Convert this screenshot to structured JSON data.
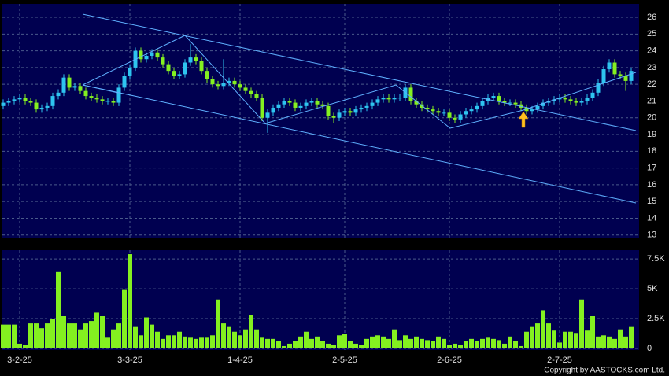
{
  "chart_data": [
    {
      "type": "candlestick",
      "up_color": "#2ec4f0",
      "down_color": "#84f020",
      "grid": true,
      "ylim": [
        12.8,
        26.8
      ],
      "yticks": [
        13,
        14,
        15,
        16,
        17,
        18,
        19,
        20,
        21,
        22,
        23,
        24,
        25,
        26
      ],
      "categories": [
        null,
        null,
        null,
        "3-2-25",
        null,
        null,
        null,
        null,
        null,
        null,
        null,
        null,
        null,
        null,
        null,
        null,
        null,
        null,
        null,
        null,
        null,
        null,
        null,
        "3-3-25",
        null,
        null,
        null,
        null,
        null,
        null,
        null,
        null,
        null,
        null,
        null,
        null,
        null,
        null,
        null,
        null,
        null,
        null,
        null,
        "1-4-25",
        null,
        null,
        null,
        null,
        null,
        null,
        null,
        null,
        null,
        null,
        null,
        null,
        null,
        null,
        null,
        null,
        null,
        null,
        "2-5-25",
        null,
        null,
        null,
        null,
        null,
        null,
        null,
        null,
        null,
        null,
        null,
        null,
        null,
        null,
        null,
        null,
        null,
        null,
        "2-6-25",
        null,
        null,
        null,
        null,
        null,
        null,
        null,
        null,
        null,
        null,
        null,
        null,
        null,
        null,
        null,
        null,
        null,
        null,
        null,
        "2-7-25",
        null,
        null,
        null,
        null,
        null,
        null,
        null,
        null,
        null,
        null,
        null,
        null,
        null
      ],
      "open": [
        20.7,
        20.9,
        21.0,
        21.1,
        21.2,
        21.0,
        20.9,
        20.5,
        20.6,
        20.7,
        21.3,
        21.5,
        22.4,
        21.8,
        21.9,
        21.6,
        21.3,
        21.2,
        21.1,
        21.0,
        21.0,
        20.9,
        21.8,
        22.5,
        23.0,
        24.0,
        23.5,
        23.7,
        23.9,
        23.6,
        23.2,
        22.8,
        22.5,
        22.6,
        23.3,
        23.6,
        23.4,
        22.8,
        22.3,
        22.0,
        21.9,
        22.1,
        22.2,
        22.0,
        21.8,
        21.6,
        21.4,
        21.2,
        20.0,
        20.3,
        20.6,
        20.8,
        21.0,
        20.9,
        20.6,
        20.7,
        20.9,
        21.0,
        20.8,
        20.7,
        20.1,
        20.0,
        20.3,
        20.4,
        20.3,
        20.5,
        20.6,
        20.7,
        20.9,
        21.1,
        21.2,
        21.1,
        21.2,
        21.2,
        21.8,
        21.0,
        20.8,
        20.6,
        20.5,
        20.4,
        20.3,
        20.3,
        20.0,
        19.9,
        20.2,
        20.4,
        20.5,
        20.7,
        21.0,
        21.2,
        21.3,
        21.0,
        20.9,
        20.9,
        20.8,
        20.6,
        20.4,
        20.5,
        20.7,
        20.9,
        21.0,
        21.1,
        21.2,
        21.1,
        21.0,
        20.9,
        21.0,
        21.2,
        21.5,
        22.1,
        22.9,
        23.3,
        22.6,
        22.5,
        22.2
      ],
      "high": [
        21.1,
        21.2,
        21.3,
        21.4,
        21.4,
        21.2,
        21.1,
        20.8,
        20.9,
        21.5,
        21.7,
        22.6,
        22.6,
        22.1,
        22.1,
        21.8,
        21.5,
        21.4,
        21.3,
        21.2,
        21.2,
        22.0,
        22.7,
        23.2,
        24.2,
        24.2,
        23.9,
        24.1,
        24.1,
        23.8,
        23.4,
        23.0,
        22.8,
        23.5,
        24.4,
        23.8,
        23.6,
        23.0,
        22.5,
        22.2,
        23.5,
        22.4,
        22.4,
        22.2,
        22.0,
        21.8,
        21.6,
        21.4,
        20.5,
        20.8,
        21.0,
        21.2,
        21.2,
        21.1,
        20.9,
        21.1,
        21.2,
        21.2,
        21.0,
        20.9,
        20.3,
        20.5,
        20.6,
        20.6,
        20.7,
        20.8,
        20.9,
        21.1,
        21.3,
        21.4,
        21.4,
        21.4,
        21.4,
        22.0,
        22.0,
        21.2,
        21.0,
        20.8,
        20.7,
        20.6,
        20.5,
        20.5,
        20.2,
        20.4,
        20.6,
        20.7,
        20.9,
        21.2,
        21.4,
        21.5,
        21.5,
        21.2,
        21.1,
        21.1,
        21.0,
        20.8,
        20.7,
        20.9,
        21.1,
        21.2,
        21.3,
        21.4,
        21.4,
        21.3,
        21.2,
        21.2,
        21.4,
        21.7,
        22.3,
        23.1,
        23.5,
        23.5,
        22.8,
        22.7,
        23.0
      ],
      "low": [
        20.5,
        20.7,
        20.8,
        20.9,
        20.8,
        20.7,
        20.3,
        20.3,
        20.4,
        20.5,
        21.1,
        21.3,
        21.6,
        21.6,
        21.4,
        21.1,
        21.0,
        20.9,
        20.8,
        20.8,
        20.7,
        20.7,
        21.6,
        22.3,
        22.8,
        23.3,
        23.3,
        23.5,
        23.4,
        23.0,
        22.6,
        22.3,
        22.3,
        22.4,
        23.1,
        23.2,
        22.6,
        22.1,
        21.8,
        21.7,
        21.7,
        21.9,
        21.8,
        21.6,
        21.4,
        21.2,
        21.0,
        19.8,
        19.1,
        20.1,
        20.4,
        20.6,
        20.7,
        20.4,
        20.4,
        20.5,
        20.7,
        20.6,
        20.5,
        19.9,
        19.7,
        19.8,
        20.1,
        20.1,
        20.1,
        20.3,
        20.4,
        20.5,
        20.7,
        20.9,
        20.9,
        20.9,
        21.0,
        21.0,
        20.8,
        20.6,
        20.4,
        20.3,
        20.2,
        20.1,
        20.1,
        19.8,
        19.7,
        19.7,
        20.0,
        20.2,
        20.3,
        20.5,
        20.8,
        21.0,
        20.8,
        20.7,
        20.7,
        20.6,
        20.4,
        20.2,
        20.2,
        20.3,
        20.5,
        20.7,
        20.8,
        20.9,
        20.9,
        20.8,
        20.7,
        20.7,
        20.8,
        21.0,
        21.3,
        21.9,
        22.7,
        22.4,
        22.3,
        21.6,
        22.0
      ],
      "close": [
        20.9,
        21.0,
        21.1,
        21.2,
        21.0,
        20.9,
        20.5,
        20.6,
        20.7,
        21.3,
        21.5,
        22.4,
        21.8,
        21.9,
        21.6,
        21.3,
        21.2,
        21.1,
        21.0,
        21.0,
        20.9,
        21.8,
        22.5,
        23.0,
        24.0,
        23.5,
        23.7,
        23.9,
        23.6,
        23.2,
        22.8,
        22.5,
        22.6,
        23.3,
        23.6,
        23.4,
        22.8,
        22.3,
        22.0,
        21.9,
        22.1,
        22.2,
        22.0,
        21.8,
        21.6,
        21.4,
        21.2,
        20.0,
        20.3,
        20.6,
        20.8,
        21.0,
        20.9,
        20.6,
        20.7,
        20.9,
        21.0,
        20.8,
        20.7,
        20.1,
        20.0,
        20.3,
        20.4,
        20.3,
        20.5,
        20.6,
        20.7,
        20.9,
        21.1,
        21.2,
        21.1,
        21.2,
        21.2,
        21.8,
        21.0,
        20.8,
        20.6,
        20.5,
        20.4,
        20.3,
        20.3,
        20.0,
        19.9,
        20.2,
        20.4,
        20.5,
        20.7,
        21.0,
        21.2,
        21.3,
        21.0,
        20.9,
        20.9,
        20.8,
        20.6,
        20.4,
        20.5,
        20.7,
        20.9,
        21.0,
        21.1,
        21.2,
        21.1,
        21.0,
        20.9,
        21.0,
        21.2,
        21.5,
        22.1,
        22.9,
        23.3,
        22.6,
        22.5,
        22.2,
        22.8
      ]
    },
    {
      "type": "bar",
      "color": "#84f020",
      "grid": true,
      "ylim": [
        0,
        8100
      ],
      "yticks": [
        0,
        {
          "value": 2500,
          "label": "2.5K"
        },
        {
          "value": 5000,
          "label": "5K"
        },
        {
          "value": 7500,
          "label": "7.5K"
        }
      ],
      "values": [
        2000,
        2000,
        2000,
        400,
        300,
        2100,
        2100,
        1700,
        2100,
        2500,
        6400,
        2700,
        2100,
        2100,
        1600,
        2100,
        2300,
        3000,
        2700,
        900,
        1600,
        2100,
        4900,
        7900,
        1800,
        1100,
        2600,
        2000,
        1400,
        800,
        1100,
        1100,
        1400,
        1000,
        900,
        800,
        900,
        900,
        1100,
        4100,
        2100,
        1800,
        1400,
        1100,
        1600,
        2800,
        1600,
        900,
        800,
        800,
        600,
        200,
        400,
        600,
        1000,
        1400,
        800,
        1000,
        600,
        400,
        300,
        1100,
        1200,
        600,
        400,
        300,
        800,
        1000,
        1100,
        1000,
        800,
        1600,
        700,
        1100,
        800,
        1000,
        800,
        700,
        600,
        1000,
        800,
        300,
        400,
        300,
        600,
        800,
        600,
        800,
        900,
        800,
        700,
        400,
        1000,
        600,
        200,
        1400,
        1800,
        2100,
        3200,
        2100,
        1500,
        500,
        1400,
        1400,
        1300,
        4100,
        1500,
        2700,
        1000,
        1100,
        1000,
        800,
        1600,
        1000,
        1800
      ]
    }
  ],
  "copyright": "Copyright by AASTOCKS.com Ltd."
}
